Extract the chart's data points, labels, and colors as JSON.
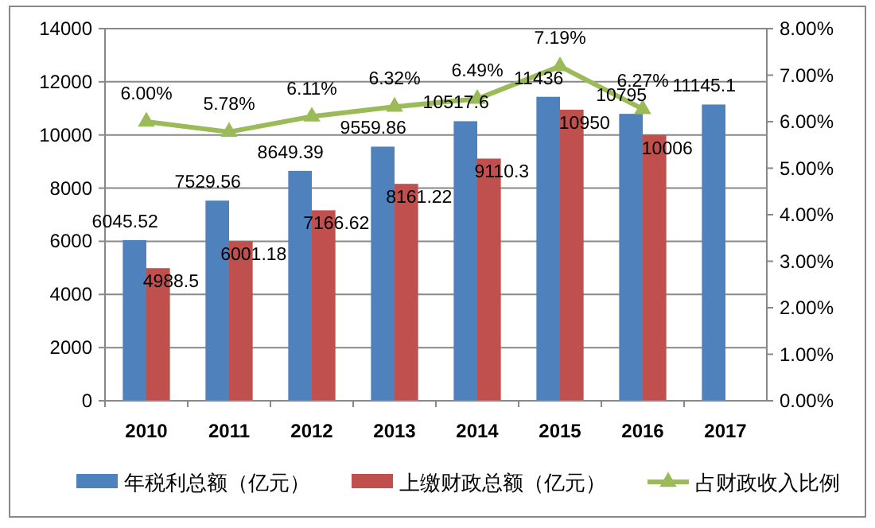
{
  "chart_data": {
    "type": "bar",
    "categories": [
      "2010",
      "2011",
      "2012",
      "2013",
      "2014",
      "2015",
      "2016",
      "2017"
    ],
    "series": [
      {
        "name": "年税利总额（亿元）",
        "color": "#4f81bd",
        "values": [
          6045.52,
          7529.56,
          8649.39,
          9559.86,
          10517.6,
          11436,
          10795,
          11145.1
        ],
        "value_labels": [
          "6045.52",
          "7529.56",
          "8649.39",
          "9559.86",
          "10517.6",
          "11436",
          "10795",
          "11145.1"
        ]
      },
      {
        "name": "上缴财政总额（亿元）",
        "color": "#c0504d",
        "values": [
          4988.5,
          6001.18,
          7166.62,
          8161.22,
          9110.3,
          10950,
          10006,
          null
        ],
        "value_labels": [
          "4988.5",
          "6001.18",
          "7166.62",
          "8161.22",
          "9110.3",
          "10950",
          "10006",
          null
        ]
      },
      {
        "name": "占财政收入比例",
        "type": "line",
        "axis": "y2",
        "color": "#9bbb59",
        "marker": "triangle",
        "values": [
          6.0,
          5.78,
          6.11,
          6.32,
          6.49,
          7.19,
          6.27,
          null
        ],
        "value_labels": [
          "6.00%",
          "5.78%",
          "6.11%",
          "6.32%",
          "6.49%",
          "7.19%",
          "6.27%",
          null
        ]
      }
    ],
    "ylim": [
      0,
      14000
    ],
    "yticks": [
      0,
      2000,
      4000,
      6000,
      8000,
      10000,
      12000,
      14000
    ],
    "y2lim": [
      0,
      8
    ],
    "y2ticks": [
      {
        "value": 0,
        "label": "0.00%"
      },
      {
        "value": 1,
        "label": "1.00%"
      },
      {
        "value": 2,
        "label": "2.00%"
      },
      {
        "value": 3,
        "label": "3.00%"
      },
      {
        "value": 4,
        "label": "4.00%"
      },
      {
        "value": 5,
        "label": "5.00%"
      },
      {
        "value": 6,
        "label": "6.00%"
      },
      {
        "value": 7,
        "label": "7.00%"
      },
      {
        "value": 8,
        "label": "8.00%"
      }
    ],
    "grid": "y",
    "legend": "bottom"
  }
}
